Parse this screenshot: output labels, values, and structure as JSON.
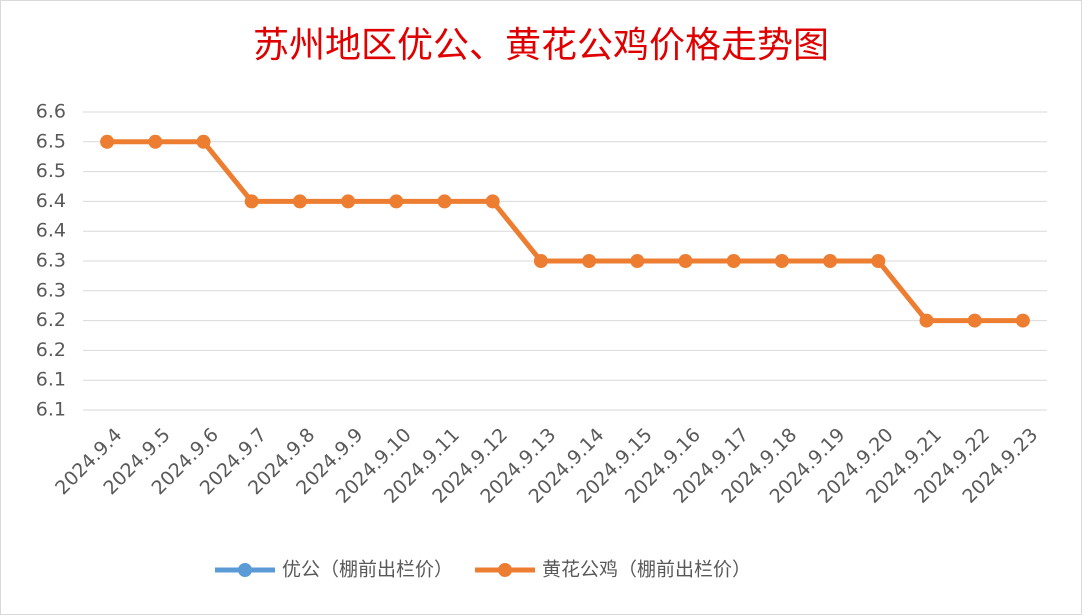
{
  "chart_data": {
    "type": "line",
    "title": "苏州地区优公、黄花公鸡价格走势图",
    "categories": [
      "2024.9.4",
      "2024.9.5",
      "2024.9.6",
      "2024.9.7",
      "2024.9.8",
      "2024.9.9",
      "2024.9.10",
      "2024.9.11",
      "2024.9.12",
      "2024.9.13",
      "2024.9.14",
      "2024.9.15",
      "2024.9.16",
      "2024.9.17",
      "2024.9.18",
      "2024.9.19",
      "2024.9.20",
      "2024.9.21",
      "2024.9.22",
      "2024.9.23"
    ],
    "series": [
      {
        "name": "优公（棚前出栏价）",
        "color": "#5b9bd5",
        "values": [
          null,
          null,
          null,
          null,
          null,
          null,
          null,
          null,
          null,
          null,
          null,
          null,
          null,
          null,
          null,
          null,
          null,
          null,
          null,
          null
        ]
      },
      {
        "name": "黄花公鸡（棚前出栏价）",
        "color": "#ed7d31",
        "values": [
          6.55,
          6.55,
          6.55,
          6.45,
          6.45,
          6.45,
          6.45,
          6.45,
          6.45,
          6.35,
          6.35,
          6.35,
          6.35,
          6.35,
          6.35,
          6.35,
          6.35,
          6.25,
          6.25,
          6.25
        ]
      }
    ],
    "ylim": [
      6.1,
      6.6
    ],
    "yticks": [
      {
        "value": 6.1,
        "label": "6.1"
      },
      {
        "value": 6.15,
        "label": "6.1"
      },
      {
        "value": 6.2,
        "label": "6.2"
      },
      {
        "value": 6.25,
        "label": "6.2"
      },
      {
        "value": 6.3,
        "label": "6.3"
      },
      {
        "value": 6.35,
        "label": "6.3"
      },
      {
        "value": 6.4,
        "label": "6.4"
      },
      {
        "value": 6.45,
        "label": "6.4"
      },
      {
        "value": 6.5,
        "label": "6.5"
      },
      {
        "value": 6.55,
        "label": "6.5"
      },
      {
        "value": 6.6,
        "label": "6.6"
      }
    ],
    "grid": true,
    "legend": "bottom"
  }
}
